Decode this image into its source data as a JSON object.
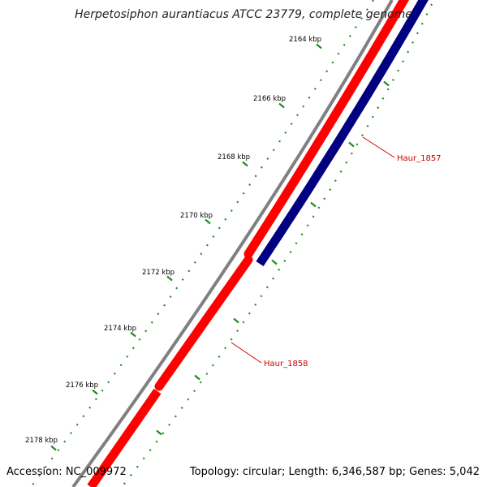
{
  "title": "Herpetosiphon aurantiacus ATCC 23779, complete genome",
  "footer": {
    "accession": "Accession: NC_009972",
    "summary": "Topology: circular; Length: 6,346,587 bp; Genes: 5,042"
  },
  "ticks": [
    "2164 kbp",
    "2166 kbp",
    "2168 kbp",
    "2170 kbp",
    "2172 kbp",
    "2174 kbp",
    "2176 kbp",
    "2178 kbp"
  ],
  "genes": [
    {
      "name": "Haur_1857",
      "strand": "reverse",
      "color": "#000080"
    },
    {
      "name": "Haur_1858",
      "strand": "forward",
      "color": "#ff0000"
    }
  ],
  "colors": {
    "backbone": "#808080",
    "forward_strand": "#ff0000",
    "reverse_strand": "#000080",
    "tick_marks": "#228b22",
    "label_text": "#cc0000"
  }
}
